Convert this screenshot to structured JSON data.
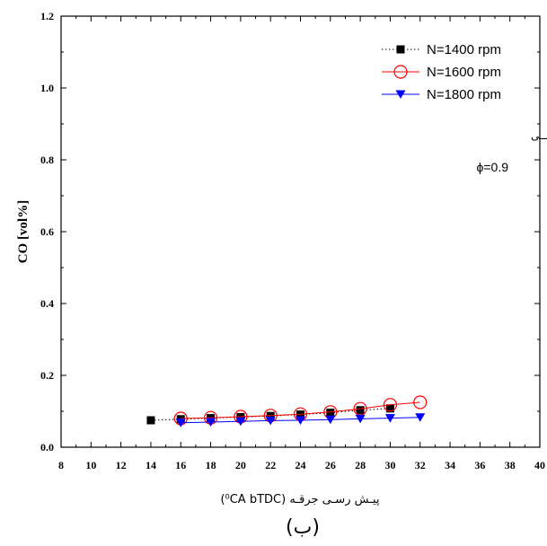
{
  "chart_data": {
    "type": "line",
    "title": "",
    "xlabel": "پیـش رسـی جرقـه (⁰CA bTDC)",
    "ylabel": "CO [vol%]",
    "caption": "(ب)",
    "xlim": [
      8,
      40
    ],
    "ylim": [
      0,
      1.2
    ],
    "xticks": [
      8,
      10,
      12,
      14,
      16,
      18,
      20,
      22,
      24,
      26,
      28,
      30,
      32,
      34,
      36,
      38,
      40
    ],
    "yticks": [
      0.0,
      0.2,
      0.4,
      0.6,
      0.8,
      1.0,
      1.2
    ],
    "ytick_labels": [
      "0.0",
      "0.2",
      "0.4",
      "0.6",
      "0.8",
      "1.0",
      "1.2"
    ],
    "legend_position": "top-right",
    "annotations": [
      "ســوخت: گــاز طبیعــی",
      "ϕ=0.9"
    ],
    "series": [
      {
        "name": "N=1400 rpm",
        "marker": "filled-square",
        "line": "dotted",
        "color": "#000000",
        "x": [
          14,
          16,
          18,
          20,
          22,
          24,
          26,
          28,
          30
        ],
        "y": [
          0.075,
          0.078,
          0.081,
          0.084,
          0.087,
          0.091,
          0.096,
          0.103,
          0.108
        ]
      },
      {
        "name": "N=1600 rpm",
        "marker": "open-circle",
        "line": "solid",
        "color": "#ff0000",
        "x": [
          16,
          18,
          20,
          22,
          24,
          26,
          28,
          30,
          32
        ],
        "y": [
          0.08,
          0.082,
          0.085,
          0.088,
          0.092,
          0.098,
          0.107,
          0.118,
          0.125
        ]
      },
      {
        "name": "N=1800 rpm",
        "marker": "filled-down-triangle",
        "line": "solid",
        "color": "#0000ff",
        "x": [
          16,
          18,
          20,
          22,
          24,
          26,
          28,
          30,
          32
        ],
        "y": [
          0.068,
          0.07,
          0.072,
          0.074,
          0.075,
          0.077,
          0.079,
          0.081,
          0.083
        ]
      }
    ]
  }
}
